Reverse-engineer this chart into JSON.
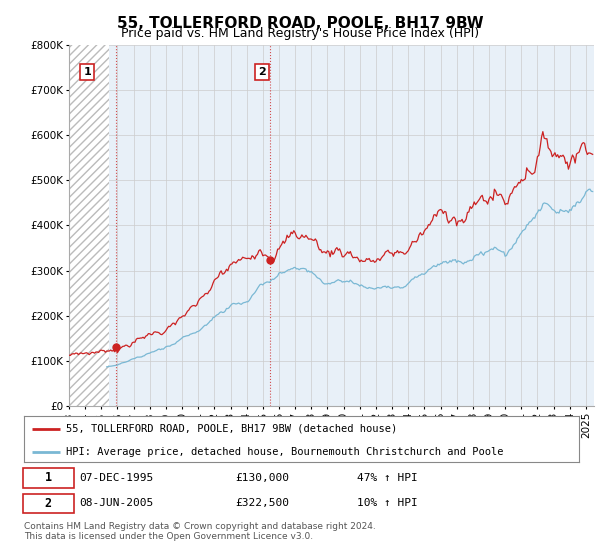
{
  "title": "55, TOLLERFORD ROAD, POOLE, BH17 9BW",
  "subtitle": "Price paid vs. HM Land Registry's House Price Index (HPI)",
  "ylim": [
    0,
    800000
  ],
  "yticks": [
    0,
    100000,
    200000,
    300000,
    400000,
    500000,
    600000,
    700000,
    800000
  ],
  "ytick_labels": [
    "£0",
    "£100K",
    "£200K",
    "£300K",
    "£400K",
    "£500K",
    "£600K",
    "£700K",
    "£800K"
  ],
  "xlim_start": 1993.0,
  "xlim_end": 2025.5,
  "hpi_color": "#7ab8d4",
  "price_color": "#cc2222",
  "marker_color": "#cc2222",
  "sale1_x": 1995.92,
  "sale1_y": 130000,
  "sale2_x": 2005.44,
  "sale2_y": 322500,
  "annotation1_label": "1",
  "annotation2_label": "2",
  "legend_line1": "55, TOLLERFORD ROAD, POOLE, BH17 9BW (detached house)",
  "legend_line2": "HPI: Average price, detached house, Bournemouth Christchurch and Poole",
  "table_row1": [
    "1",
    "07-DEC-1995",
    "£130,000",
    "47% ↑ HPI"
  ],
  "table_row2": [
    "2",
    "08-JUN-2005",
    "£322,500",
    "10% ↑ HPI"
  ],
  "footer": "Contains HM Land Registry data © Crown copyright and database right 2024.\nThis data is licensed under the Open Government Licence v3.0.",
  "background_color": "#ffffff",
  "plot_bg_color": "#e8f0f8",
  "grid_color": "#cccccc",
  "hatch_end": 1995.5,
  "title_fontsize": 11,
  "subtitle_fontsize": 9,
  "tick_fontsize": 7.5
}
